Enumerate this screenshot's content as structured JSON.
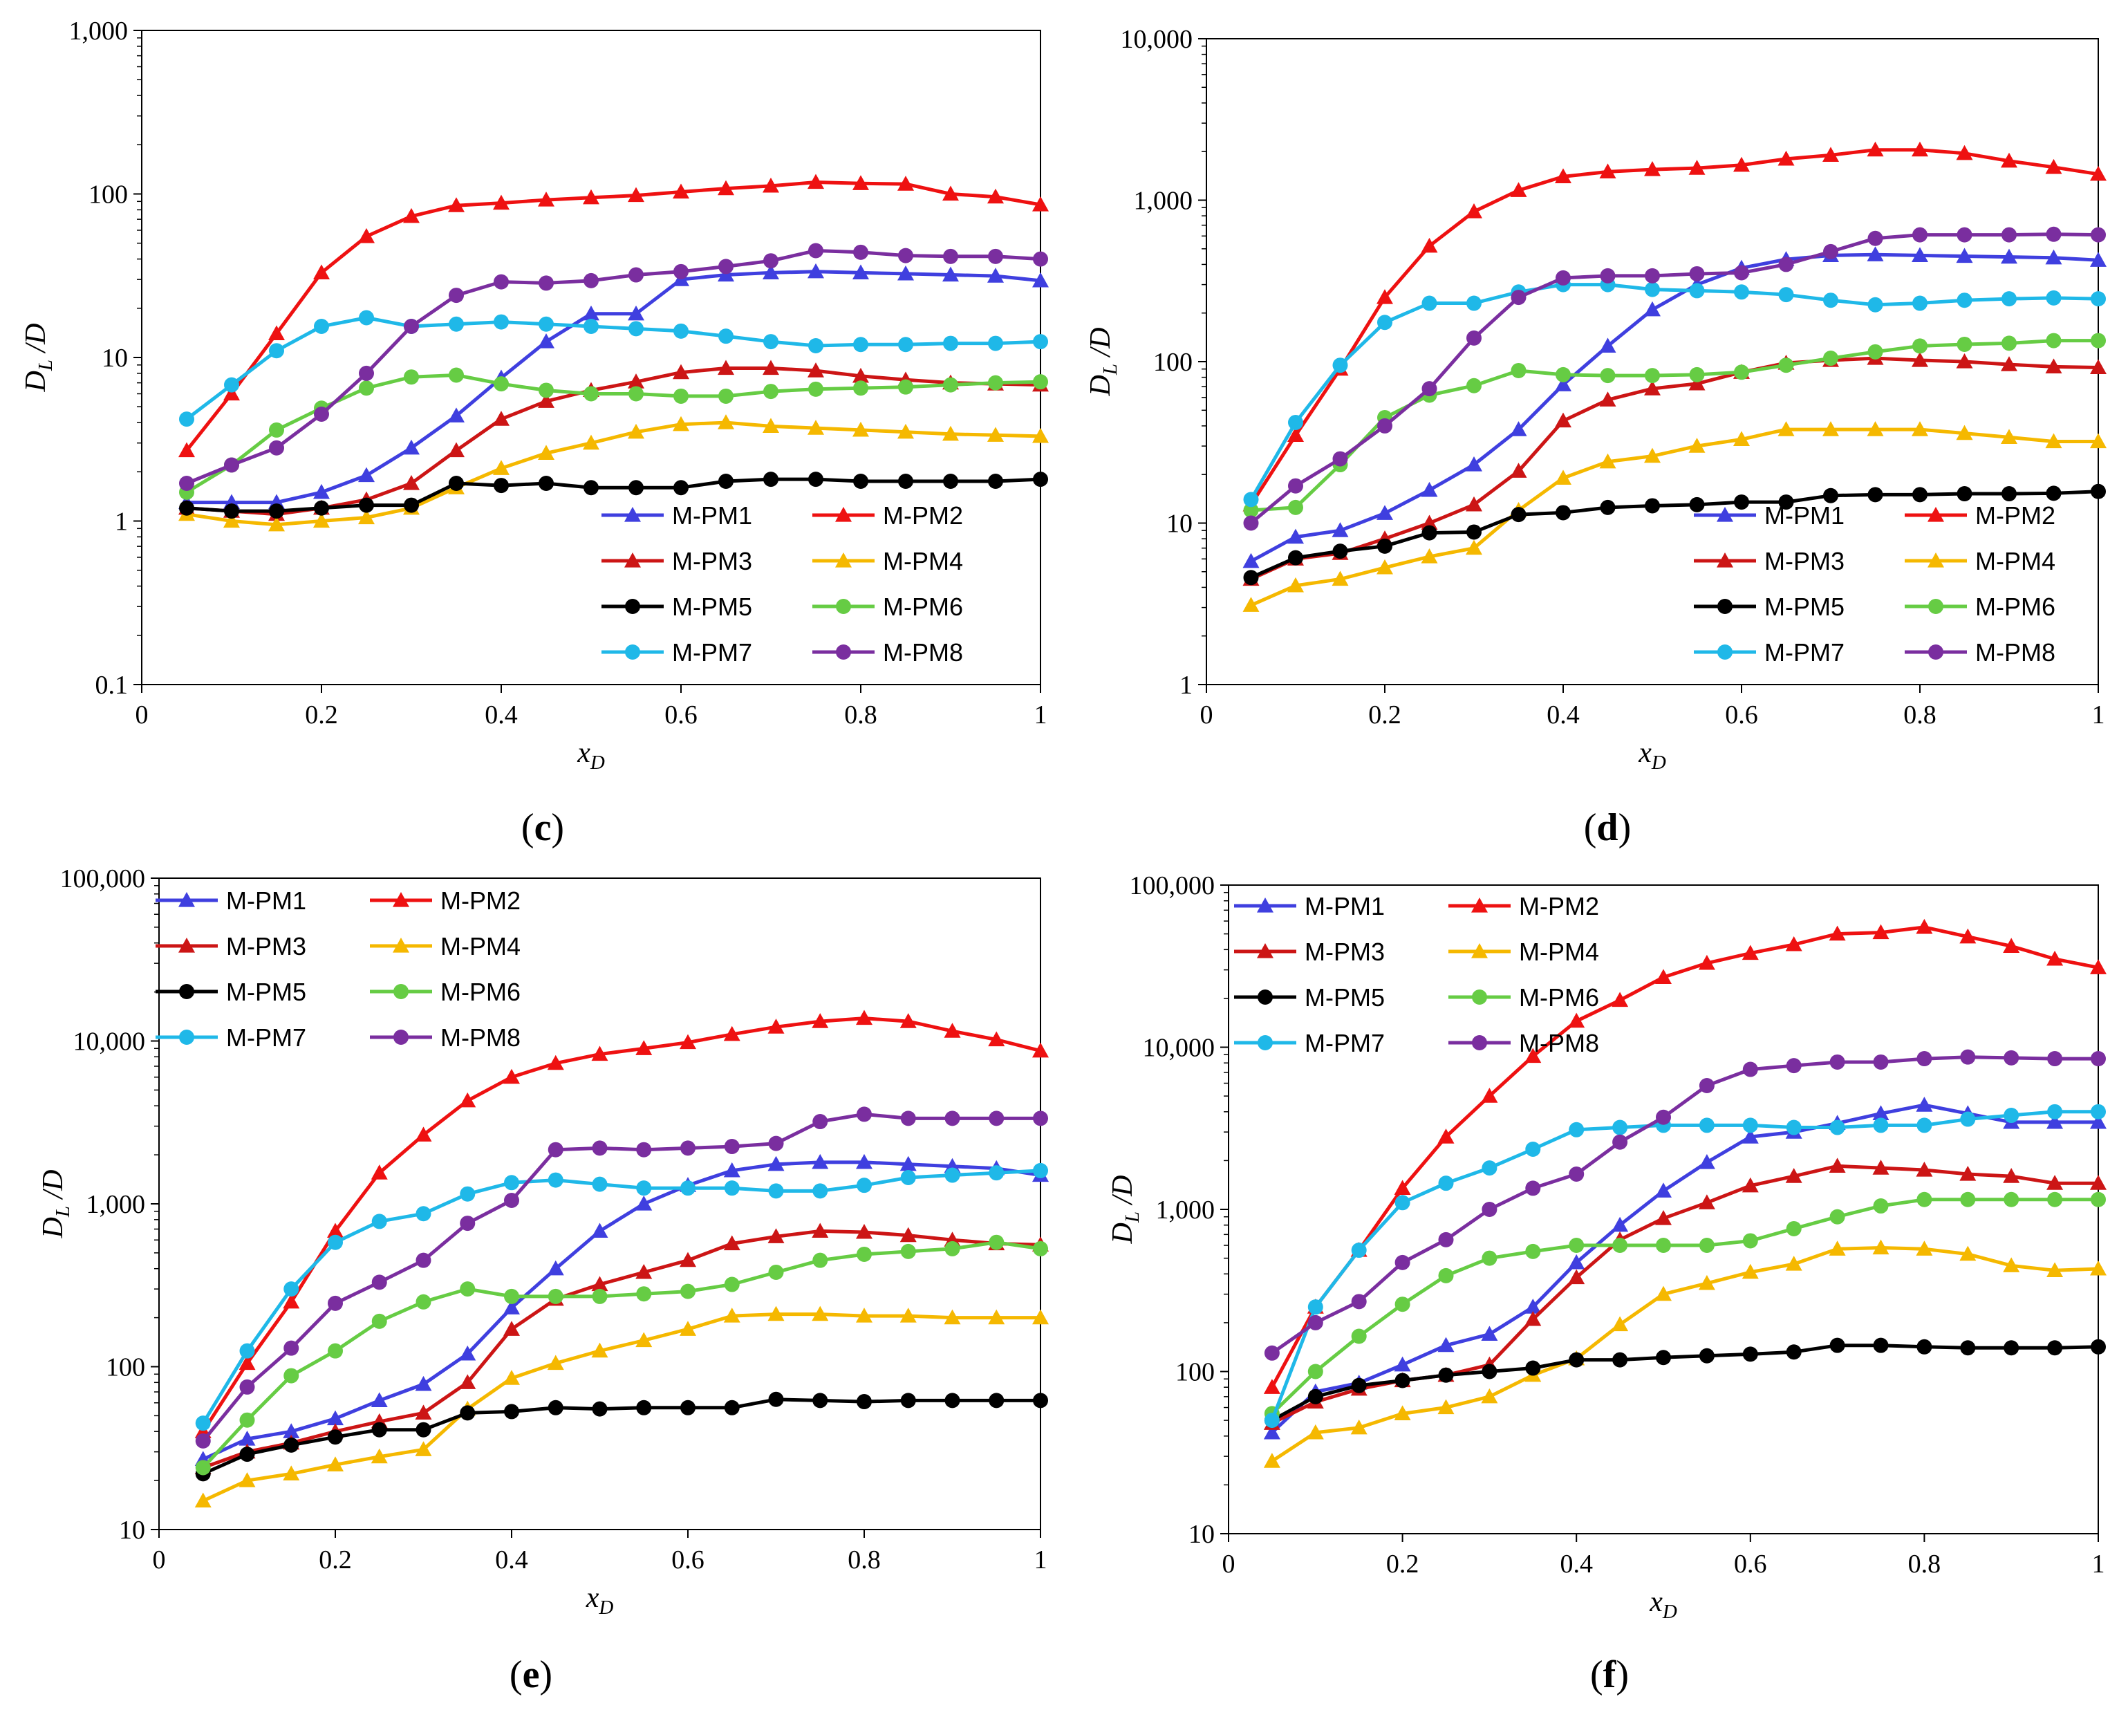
{
  "figure": {
    "series_names": [
      "M-PM1",
      "M-PM2",
      "M-PM3",
      "M-PM4",
      "M-PM5",
      "M-PM6",
      "M-PM7",
      "M-PM8"
    ],
    "colors": {
      "M-PM1": "#3f3fdf",
      "M-PM2": "#ee1111",
      "M-PM3": "#cc1515",
      "M-PM4": "#f5b800",
      "M-PM5": "#000000",
      "M-PM6": "#66cc44",
      "M-PM7": "#1fb8e8",
      "M-PM8": "#7a2e9f"
    },
    "markers": {
      "M-PM1": "triangle",
      "M-PM2": "triangle",
      "M-PM3": "triangle",
      "M-PM4": "triangle",
      "M-PM5": "circle",
      "M-PM6": "circle",
      "M-PM7": "circle",
      "M-PM8": "circle"
    }
  },
  "chart_data": [
    {
      "type": "line",
      "panel_label": "c",
      "xlabel_main": "x",
      "xlabel_sub": "D",
      "ylabel_main": "D",
      "ylabel_sub": "L",
      "ylabel_suffix": " /D",
      "yscale": "log",
      "xlim": [
        0,
        1
      ],
      "ylim": [
        0.1,
        1000
      ],
      "xticks": [
        0,
        0.2,
        0.4,
        0.6,
        0.8,
        1
      ],
      "xtick_labels": [
        "0",
        "0.2",
        "0.4",
        "0.6",
        "0.8",
        "1"
      ],
      "yticks": [
        0.1,
        1,
        10,
        100,
        1000
      ],
      "ytick_labels": [
        "0.1",
        "1",
        "10",
        "100",
        "1,000"
      ],
      "legend": "bottom-right",
      "x": [
        0.05,
        0.1,
        0.15,
        0.2,
        0.25,
        0.3,
        0.35,
        0.4,
        0.45,
        0.5,
        0.55,
        0.6,
        0.65,
        0.7,
        0.75,
        0.8,
        0.85,
        0.9,
        0.95,
        1.0
      ],
      "series": [
        {
          "name": "M-PM1",
          "values": [
            1.3,
            1.3,
            1.3,
            1.5,
            1.9,
            2.8,
            4.4,
            7.5,
            12.5,
            18.5,
            18.5,
            30,
            32,
            33,
            33.5,
            33,
            32.5,
            32,
            31.5,
            29.5
          ]
        },
        {
          "name": "M-PM2",
          "values": [
            2.7,
            6,
            14,
            33,
            55,
            73,
            85,
            88,
            92,
            95,
            98,
            103,
            108,
            112,
            118,
            116,
            115,
            100,
            96,
            86
          ]
        },
        {
          "name": "M-PM3",
          "values": [
            1.2,
            1.15,
            1.1,
            1.2,
            1.35,
            1.7,
            2.7,
            4.2,
            5.4,
            6.3,
            7.1,
            8.1,
            8.6,
            8.6,
            8.3,
            7.7,
            7.3,
            7.0,
            6.9,
            6.8
          ]
        },
        {
          "name": "M-PM4",
          "values": [
            1.1,
            1.0,
            0.95,
            1.0,
            1.05,
            1.2,
            1.6,
            2.1,
            2.6,
            3.0,
            3.5,
            3.9,
            4.0,
            3.8,
            3.7,
            3.6,
            3.5,
            3.4,
            3.35,
            3.3
          ]
        },
        {
          "name": "M-PM5",
          "values": [
            1.2,
            1.15,
            1.15,
            1.2,
            1.25,
            1.25,
            1.7,
            1.65,
            1.7,
            1.6,
            1.6,
            1.6,
            1.75,
            1.8,
            1.8,
            1.75,
            1.75,
            1.75,
            1.75,
            1.8
          ]
        },
        {
          "name": "M-PM6",
          "values": [
            1.5,
            2.2,
            3.6,
            4.9,
            6.5,
            7.6,
            7.8,
            6.9,
            6.3,
            6.0,
            6.0,
            5.8,
            5.8,
            6.2,
            6.4,
            6.5,
            6.6,
            6.8,
            7.0,
            7.1
          ]
        },
        {
          "name": "M-PM7",
          "values": [
            4.2,
            6.8,
            11,
            15.5,
            17.5,
            15.5,
            16,
            16.5,
            16,
            15.5,
            15,
            14.5,
            13.5,
            12.5,
            11.8,
            12,
            12,
            12.2,
            12.2,
            12.5
          ]
        },
        {
          "name": "M-PM8",
          "values": [
            1.7,
            2.2,
            2.8,
            4.5,
            8.0,
            15.5,
            24,
            29,
            28.5,
            29.5,
            32,
            33.5,
            36,
            39,
            45,
            44,
            42,
            41.5,
            41.5,
            40
          ]
        }
      ]
    },
    {
      "type": "line",
      "panel_label": "d",
      "xlabel_main": "x",
      "xlabel_sub": "D",
      "ylabel_main": "D",
      "ylabel_sub": "L",
      "ylabel_suffix": " /D",
      "yscale": "log",
      "xlim": [
        0,
        1
      ],
      "ylim": [
        1,
        10000
      ],
      "xticks": [
        0,
        0.2,
        0.4,
        0.6,
        0.8,
        1
      ],
      "xtick_labels": [
        "0",
        "0.2",
        "0.4",
        "0.6",
        "0.8",
        "1"
      ],
      "yticks": [
        1,
        10,
        100,
        1000,
        10000
      ],
      "ytick_labels": [
        "1",
        "10",
        "100",
        "1,000",
        "10,000"
      ],
      "legend": "bottom-right",
      "x": [
        0.05,
        0.1,
        0.15,
        0.2,
        0.25,
        0.3,
        0.35,
        0.4,
        0.45,
        0.5,
        0.55,
        0.6,
        0.65,
        0.7,
        0.75,
        0.8,
        0.85,
        0.9,
        0.95,
        1.0
      ],
      "series": [
        {
          "name": "M-PM1",
          "values": [
            5.8,
            8.2,
            9.0,
            11.5,
            16,
            23,
            38,
            72,
            125,
            210,
            300,
            380,
            430,
            455,
            460,
            455,
            450,
            445,
            440,
            425
          ]
        },
        {
          "name": "M-PM2",
          "values": [
            13,
            35,
            90,
            250,
            520,
            850,
            1150,
            1400,
            1500,
            1550,
            1580,
            1650,
            1800,
            1900,
            2050,
            2050,
            1950,
            1750,
            1600,
            1450
          ]
        },
        {
          "name": "M-PM3",
          "values": [
            4.5,
            6.0,
            6.5,
            8.0,
            10,
            13,
            21,
            43,
            58,
            68,
            73,
            86,
            98,
            102,
            105,
            102,
            100,
            96,
            93,
            92
          ]
        },
        {
          "name": "M-PM4",
          "values": [
            3.1,
            4.1,
            4.5,
            5.3,
            6.2,
            7.0,
            12,
            19,
            24,
            26,
            30,
            33,
            38,
            38,
            38,
            38,
            36,
            34,
            32,
            32
          ]
        },
        {
          "name": "M-PM5",
          "values": [
            4.6,
            6.1,
            6.7,
            7.2,
            8.7,
            8.8,
            11.3,
            11.6,
            12.5,
            12.8,
            13,
            13.5,
            13.5,
            14.8,
            15,
            15,
            15.2,
            15.2,
            15.3,
            15.7
          ]
        },
        {
          "name": "M-PM6",
          "values": [
            12,
            12.5,
            23,
            45,
            62,
            71,
            88,
            83,
            82,
            82,
            83,
            86,
            95,
            105,
            115,
            125,
            128,
            130,
            135,
            135
          ]
        },
        {
          "name": "M-PM7",
          "values": [
            14,
            42,
            95,
            175,
            230,
            230,
            270,
            300,
            300,
            280,
            275,
            270,
            260,
            240,
            225,
            230,
            240,
            245,
            248,
            245
          ]
        },
        {
          "name": "M-PM8",
          "values": [
            10,
            17,
            25,
            40,
            68,
            140,
            250,
            330,
            340,
            340,
            350,
            355,
            400,
            480,
            580,
            610,
            610,
            610,
            615,
            610
          ]
        }
      ]
    },
    {
      "type": "line",
      "panel_label": "e",
      "xlabel_main": "x",
      "xlabel_sub": "D",
      "ylabel_main": "D",
      "ylabel_sub": "L",
      "ylabel_suffix": " /D",
      "yscale": "log",
      "xlim": [
        0,
        1
      ],
      "ylim": [
        10,
        100000
      ],
      "xticks": [
        0,
        0.2,
        0.4,
        0.6,
        0.8,
        1
      ],
      "xtick_labels": [
        "0",
        "0.2",
        "0.4",
        "0.6",
        "0.8",
        "1"
      ],
      "yticks": [
        10,
        100,
        1000,
        10000,
        100000
      ],
      "ytick_labels": [
        "10",
        "100",
        "1,000",
        "10,000",
        "100,000"
      ],
      "legend": "top-left",
      "x": [
        0.05,
        0.1,
        0.15,
        0.2,
        0.25,
        0.3,
        0.35,
        0.4,
        0.45,
        0.5,
        0.55,
        0.6,
        0.65,
        0.7,
        0.75,
        0.8,
        0.85,
        0.9,
        0.95,
        1.0
      ],
      "series": [
        {
          "name": "M-PM1",
          "values": [
            27,
            36,
            40,
            48,
            62,
            78,
            120,
            230,
            400,
            680,
            1000,
            1300,
            1600,
            1750,
            1800,
            1800,
            1750,
            1700,
            1650,
            1500
          ]
        },
        {
          "name": "M-PM2",
          "values": [
            40,
            105,
            250,
            680,
            1550,
            2650,
            4300,
            6000,
            7300,
            8300,
            9000,
            9800,
            11000,
            12200,
            13200,
            13800,
            13200,
            11500,
            10200,
            8700
          ]
        },
        {
          "name": "M-PM3",
          "values": [
            24,
            30,
            34,
            40,
            46,
            52,
            80,
            170,
            260,
            320,
            380,
            450,
            570,
            630,
            680,
            670,
            640,
            600,
            570,
            560
          ]
        },
        {
          "name": "M-PM4",
          "values": [
            15,
            20,
            22,
            25,
            28,
            31,
            55,
            85,
            105,
            125,
            145,
            170,
            205,
            210,
            210,
            205,
            205,
            200,
            200,
            200
          ]
        },
        {
          "name": "M-PM5",
          "values": [
            22,
            29,
            33,
            37,
            41,
            41,
            52,
            53,
            56,
            55,
            56,
            56,
            56,
            63,
            62,
            61,
            62,
            62,
            62,
            62
          ]
        },
        {
          "name": "M-PM6",
          "values": [
            24,
            47,
            88,
            125,
            190,
            250,
            300,
            270,
            270,
            270,
            280,
            290,
            320,
            380,
            450,
            490,
            510,
            530,
            580,
            530
          ]
        },
        {
          "name": "M-PM7",
          "values": [
            45,
            125,
            300,
            580,
            780,
            870,
            1150,
            1350,
            1400,
            1320,
            1250,
            1250,
            1250,
            1200,
            1200,
            1300,
            1450,
            1500,
            1550,
            1600
          ]
        },
        {
          "name": "M-PM8",
          "values": [
            35,
            75,
            130,
            245,
            330,
            450,
            760,
            1050,
            2150,
            2200,
            2150,
            2200,
            2250,
            2350,
            3200,
            3550,
            3350,
            3350,
            3350,
            3350
          ]
        }
      ]
    },
    {
      "type": "line",
      "panel_label": "f",
      "xlabel_main": "x",
      "xlabel_sub": "D",
      "ylabel_main": "D",
      "ylabel_sub": "L",
      "ylabel_suffix": " /D",
      "yscale": "log",
      "xlim": [
        0,
        1
      ],
      "ylim": [
        10,
        100000
      ],
      "xticks": [
        0,
        0.2,
        0.4,
        0.6,
        0.8,
        1
      ],
      "xtick_labels": [
        "0",
        "0.2",
        "0.4",
        "0.6",
        "0.8",
        "1"
      ],
      "yticks": [
        10,
        100,
        1000,
        10000,
        100000
      ],
      "ytick_labels": [
        "10",
        "100",
        "1,000",
        "10,000",
        "100,000"
      ],
      "legend": "top-left",
      "x": [
        0.05,
        0.1,
        0.15,
        0.2,
        0.25,
        0.3,
        0.35,
        0.4,
        0.45,
        0.5,
        0.55,
        0.6,
        0.65,
        0.7,
        0.75,
        0.8,
        0.85,
        0.9,
        0.95,
        1.0
      ],
      "series": [
        {
          "name": "M-PM1",
          "values": [
            42,
            75,
            85,
            110,
            145,
            170,
            250,
            470,
            800,
            1300,
            1950,
            2800,
            3000,
            3400,
            3900,
            4400,
            3900,
            3450,
            3450,
            3450
          ]
        },
        {
          "name": "M-PM2",
          "values": [
            80,
            250,
            560,
            1350,
            2800,
            5000,
            8800,
            14500,
            19500,
            27000,
            33000,
            38000,
            43000,
            50000,
            51000,
            55000,
            48000,
            42000,
            35000,
            31000
          ]
        },
        {
          "name": "M-PM3",
          "values": [
            48,
            65,
            78,
            88,
            95,
            110,
            210,
            380,
            650,
            880,
            1100,
            1400,
            1600,
            1850,
            1800,
            1750,
            1650,
            1600,
            1450,
            1450
          ]
        },
        {
          "name": "M-PM4",
          "values": [
            28,
            42,
            45,
            55,
            60,
            70,
            95,
            120,
            195,
            300,
            350,
            410,
            460,
            570,
            580,
            570,
            530,
            450,
            420,
            430
          ]
        },
        {
          "name": "M-PM5",
          "values": [
            50,
            70,
            82,
            88,
            95,
            100,
            105,
            118,
            118,
            122,
            125,
            128,
            132,
            145,
            145,
            142,
            140,
            140,
            140,
            142
          ]
        },
        {
          "name": "M-PM6",
          "values": [
            55,
            100,
            165,
            260,
            390,
            500,
            550,
            600,
            600,
            600,
            600,
            640,
            760,
            900,
            1050,
            1150,
            1150,
            1150,
            1150,
            1150
          ]
        },
        {
          "name": "M-PM7",
          "values": [
            50,
            250,
            560,
            1100,
            1450,
            1800,
            2350,
            3100,
            3200,
            3300,
            3300,
            3300,
            3200,
            3200,
            3300,
            3300,
            3600,
            3800,
            4000,
            4000
          ]
        },
        {
          "name": "M-PM8",
          "values": [
            130,
            200,
            270,
            470,
            650,
            1000,
            1350,
            1650,
            2600,
            3700,
            5800,
            7300,
            7700,
            8100,
            8100,
            8500,
            8700,
            8600,
            8500,
            8500
          ]
        }
      ]
    }
  ]
}
